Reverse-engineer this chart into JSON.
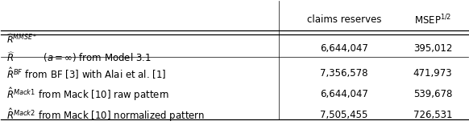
{
  "col_header_1": "claims reserves",
  "col_header_2": "MSEP$^{1/2}$",
  "rows": [
    {
      "col1": "6,644,047",
      "col2": "395,012"
    },
    {
      "label_main": "$\\hat{R}^{BF}$ from BF [3] with Alai et al. [1]",
      "col1": "7,356,578",
      "col2": "471,973"
    },
    {
      "label_main": "$\\hat{R}^{Mack1}$ from Mack [10] raw pattern",
      "col1": "6,644,047",
      "col2": "539,678"
    },
    {
      "label_main": "$\\hat{R}^{Mack2}$ from Mack [10] normalized pattern",
      "col1": "7,505,455",
      "col2": "726,531"
    }
  ],
  "bg_color": "white",
  "text_color": "black",
  "font_size": 8.5
}
